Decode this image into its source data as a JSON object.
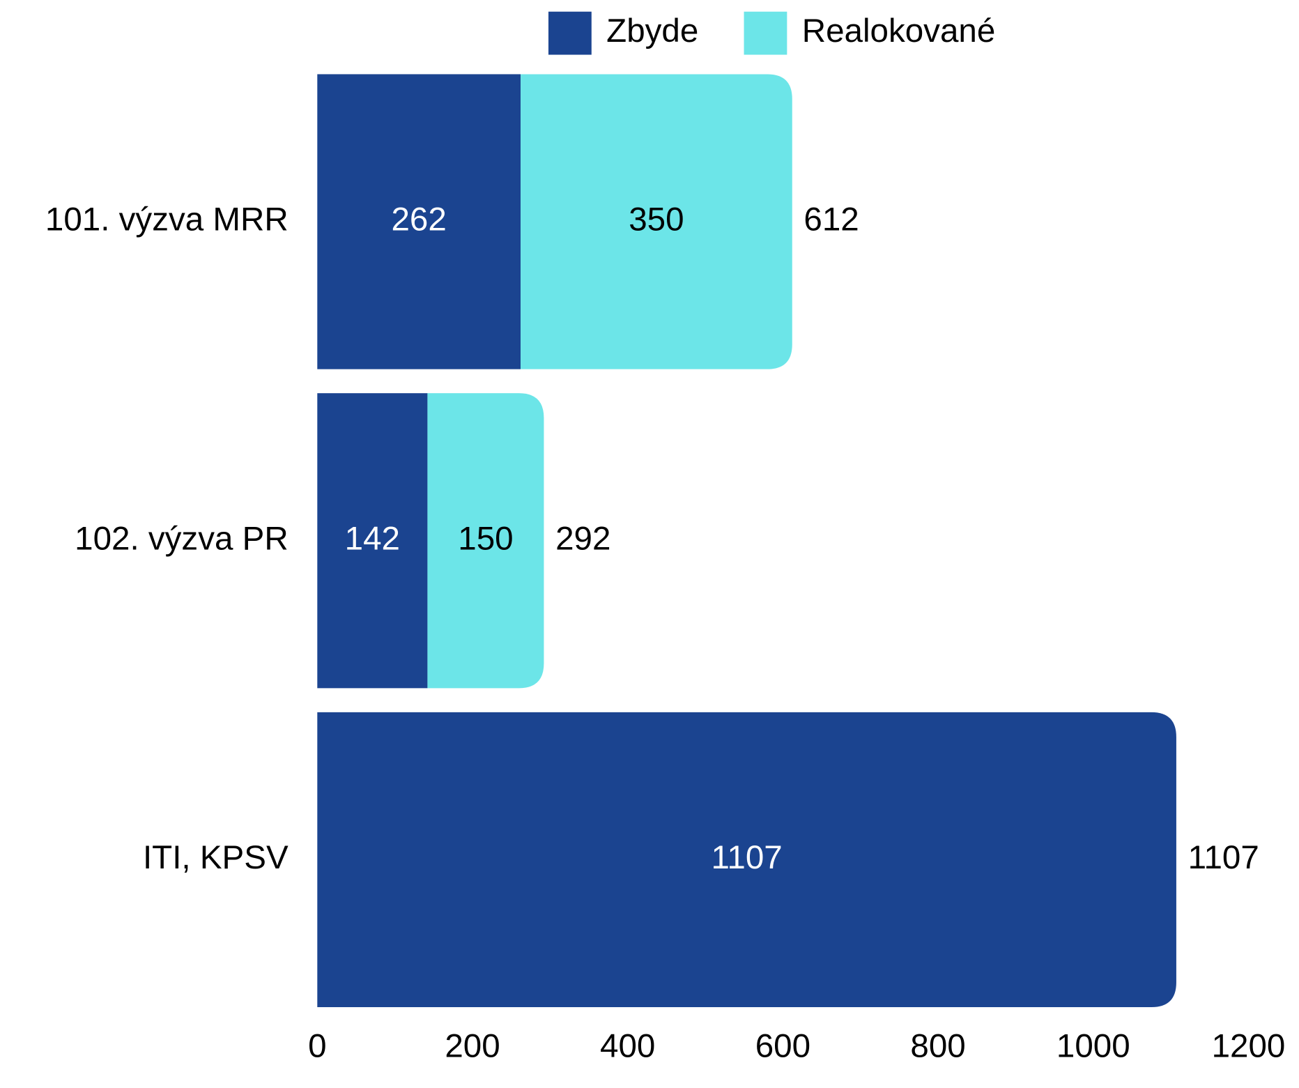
{
  "chart_data": {
    "type": "stacked_barh",
    "categories": [
      "101. výzva MRR",
      "102. výzva PR",
      "ITI, KPSV"
    ],
    "series": [
      {
        "name": "Zbyde",
        "color": "#1b4490",
        "values": [
          262,
          142,
          1107
        ]
      },
      {
        "name": "Realokované",
        "color": "#6ce5e8",
        "values": [
          350,
          150,
          null
        ]
      }
    ],
    "totals": [
      612,
      292,
      1107
    ],
    "xlim": [
      0,
      1200
    ],
    "xticks": [
      0,
      200,
      400,
      600,
      800,
      1000,
      1200
    ],
    "legend": "top",
    "grid": false
  }
}
